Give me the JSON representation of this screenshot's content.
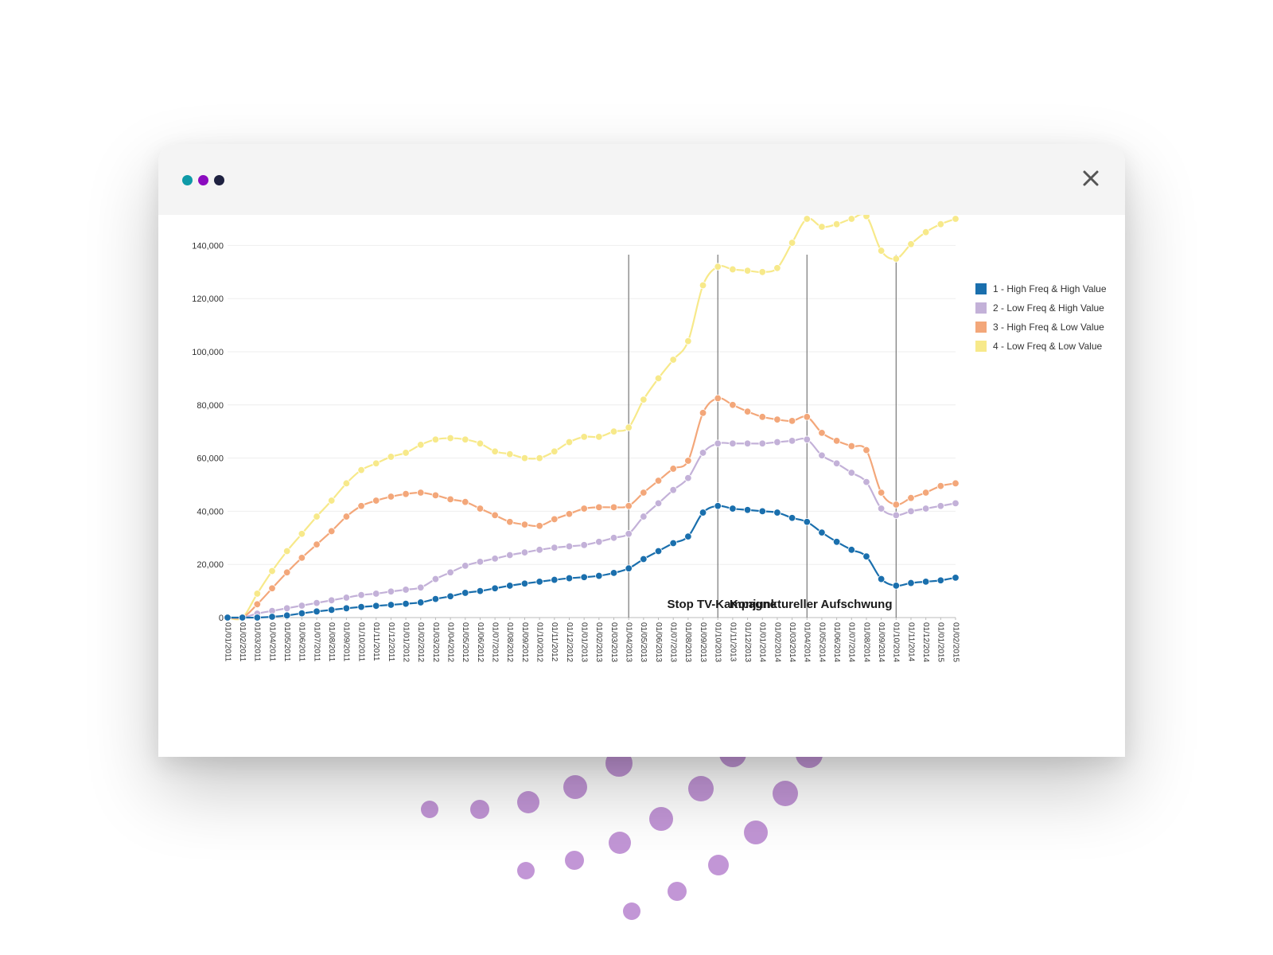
{
  "window": {
    "dots": [
      "#0e9aa7",
      "#8b0bbf",
      "#1e2140"
    ],
    "close_icon": "close-icon"
  },
  "bubbles": {
    "color": "#b784cf"
  },
  "chart_data": {
    "type": "line",
    "x": [
      "01/01/2011",
      "01/02/2011",
      "01/03/2011",
      "01/04/2011",
      "01/05/2011",
      "01/06/2011",
      "01/07/2011",
      "01/08/2011",
      "01/09/2011",
      "01/10/2011",
      "01/11/2011",
      "01/12/2011",
      "01/01/2012",
      "01/02/2012",
      "01/03/2012",
      "01/04/2012",
      "01/05/2012",
      "01/06/2012",
      "01/07/2012",
      "01/08/2012",
      "01/09/2012",
      "01/10/2012",
      "01/11/2012",
      "01/12/2012",
      "01/01/2013",
      "01/02/2013",
      "01/03/2013",
      "01/04/2013",
      "01/05/2013",
      "01/06/2013",
      "01/07/2013",
      "01/08/2013",
      "01/09/2013",
      "01/10/2013",
      "01/11/2013",
      "01/12/2013",
      "01/01/2014",
      "01/02/2014",
      "01/03/2014",
      "01/04/2014",
      "01/05/2014",
      "01/06/2014",
      "01/07/2014",
      "01/08/2014",
      "01/09/2014",
      "01/10/2014",
      "01/11/2014",
      "01/12/2014",
      "01/01/2015",
      "01/02/2015"
    ],
    "ylim": [
      0,
      150000
    ],
    "yticks": [
      0,
      20000,
      40000,
      60000,
      80000,
      100000,
      120000,
      140000
    ],
    "ytick_labels": [
      "0",
      "20,000",
      "40,000",
      "60,000",
      "80,000",
      "100,000",
      "120,000",
      "140,000"
    ],
    "grid": true,
    "legend_position": "right",
    "series": [
      {
        "name": "1 - High Freq & High Value",
        "color": "#1a6fad",
        "values": [
          0,
          0,
          0,
          300,
          800,
          1600,
          2300,
          2900,
          3500,
          4000,
          4400,
          4800,
          5200,
          5700,
          7000,
          8000,
          9300,
          10000,
          11000,
          12000,
          12800,
          13500,
          14200,
          14800,
          15200,
          15700,
          16800,
          18500,
          22000,
          25000,
          28000,
          30500,
          39500,
          42000,
          41000,
          40500,
          40000,
          39500,
          37500,
          36000,
          32000,
          28500,
          25500,
          23000,
          14500,
          12000,
          13000,
          13500,
          14000,
          15000
        ]
      },
      {
        "name": "2 - Low Freq & High Value",
        "color": "#c3b1d8",
        "values": [
          0,
          0,
          1500,
          2500,
          3500,
          4500,
          5500,
          6500,
          7500,
          8500,
          9000,
          9800,
          10500,
          11300,
          14500,
          17000,
          19500,
          21000,
          22200,
          23500,
          24500,
          25500,
          26300,
          26800,
          27300,
          28500,
          30000,
          31500,
          38000,
          43000,
          48000,
          52500,
          62000,
          65500,
          65500,
          65500,
          65500,
          66000,
          66500,
          67000,
          61000,
          58000,
          54500,
          51000,
          41000,
          38500,
          40000,
          41000,
          42000,
          43000
        ]
      },
      {
        "name": "3 - High Freq & Low Value",
        "color": "#f3a77a",
        "values": [
          0,
          0,
          5000,
          11000,
          17000,
          22500,
          27500,
          32500,
          38000,
          42000,
          44000,
          45500,
          46500,
          47000,
          46000,
          44500,
          43500,
          41000,
          38500,
          36000,
          35000,
          34500,
          37000,
          39000,
          41000,
          41500,
          41500,
          42000,
          47000,
          51500,
          56000,
          59000,
          77000,
          82500,
          80000,
          77500,
          75500,
          74500,
          74000,
          75500,
          69500,
          66500,
          64500,
          63000,
          47000,
          42500,
          45000,
          47000,
          49500,
          50500
        ]
      },
      {
        "name": "4 - Low Freq & Low Value",
        "color": "#f7e98a",
        "values": [
          0,
          0,
          9000,
          17500,
          25000,
          31500,
          38000,
          44000,
          50500,
          55500,
          58000,
          60500,
          62000,
          65000,
          67000,
          67500,
          67000,
          65500,
          62500,
          61500,
          60000,
          60000,
          62500,
          66000,
          68000,
          68000,
          70000,
          71500,
          82000,
          90000,
          97000,
          104000,
          125000,
          132000,
          131000,
          130500,
          130000,
          131500,
          141000,
          150000,
          147000,
          148000,
          150000,
          151000,
          138000,
          135000,
          140500,
          145000,
          148000,
          150000
        ]
      }
    ],
    "events": [
      {
        "x": "01/04/2013",
        "label": ""
      },
      {
        "x": "01/10/2013",
        "label": "Stop TV-Kampagne"
      },
      {
        "x": "01/04/2014",
        "label": "Konjunktureller Aufschwung"
      },
      {
        "x": "01/10/2014",
        "label": ""
      }
    ]
  }
}
